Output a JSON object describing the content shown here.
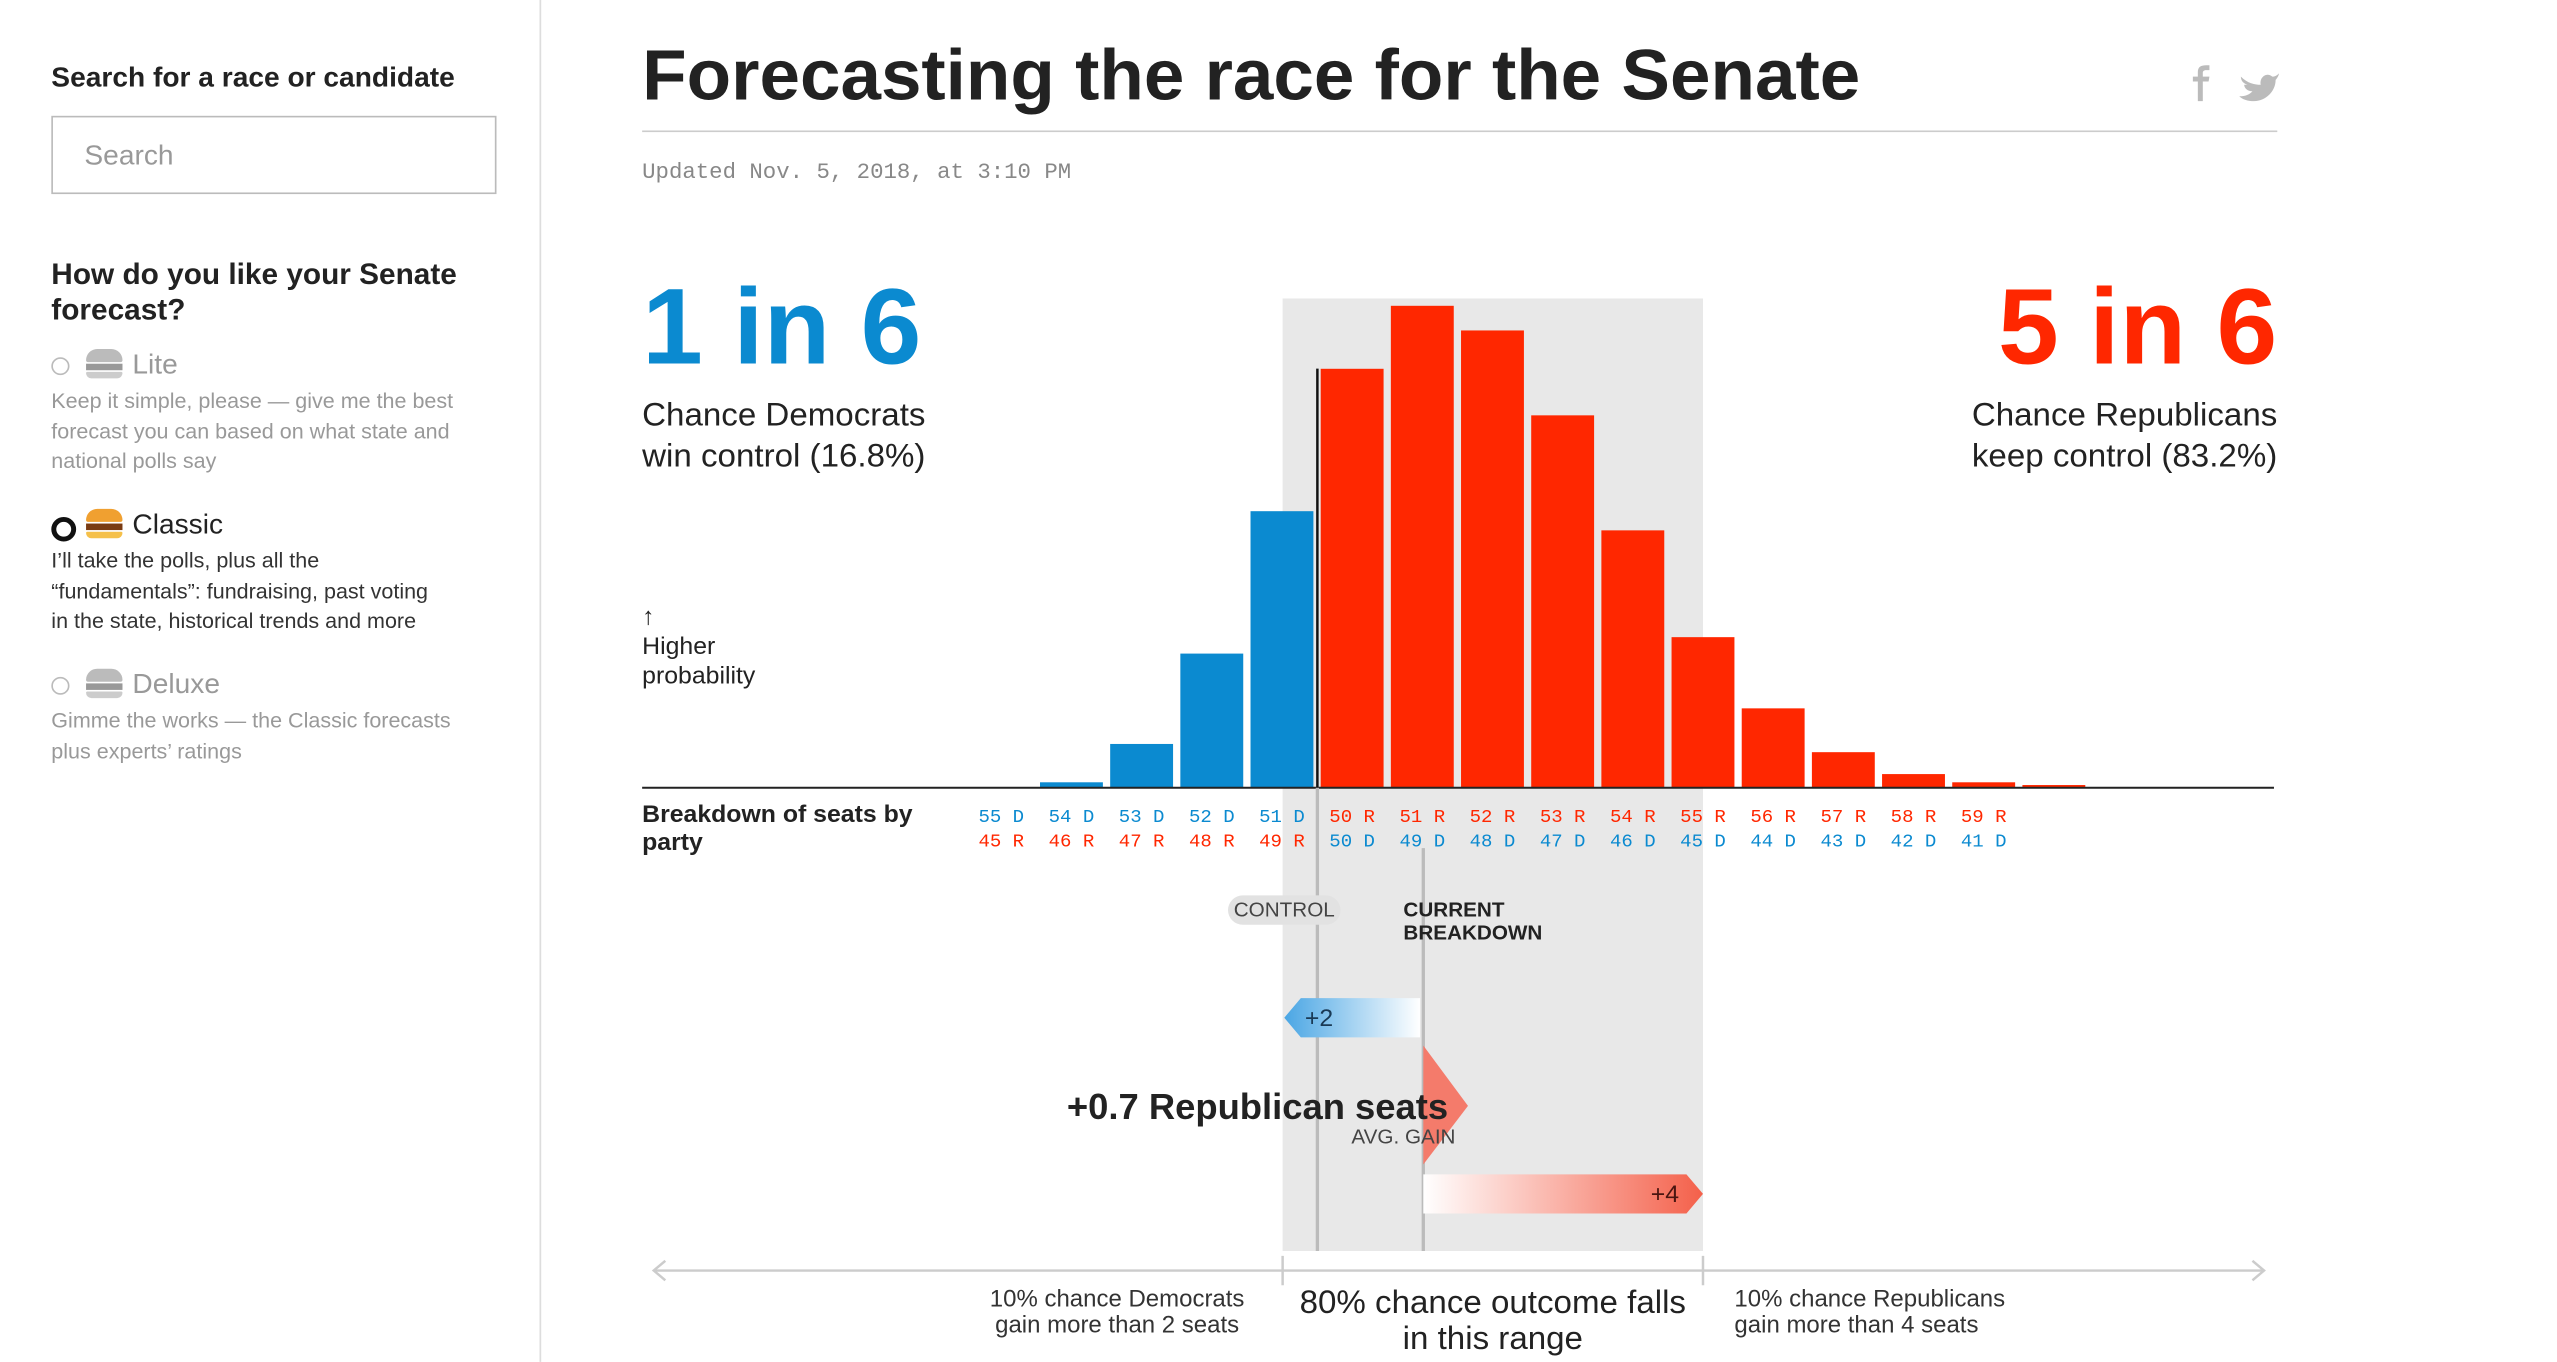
{
  "sidebar": {
    "search_heading": "Search for a race or candidate",
    "search_placeholder": "Search",
    "forecast_heading": "How do you like your Senate forecast?",
    "options": [
      {
        "name": "Lite",
        "description": [
          "Keep it simple, please — give me the best",
          "forecast you can based on what state and",
          "national polls say"
        ],
        "selected": false
      },
      {
        "name": "Classic",
        "description": [
          "I’ll take the polls, plus all the",
          "“fundamentals”: fundraising, past voting",
          "in the state, historical trends and more"
        ],
        "selected": true
      },
      {
        "name": "Deluxe",
        "description": [
          "Gimme the works — the Classic forecasts",
          "plus experts’ ratings"
        ],
        "selected": false
      }
    ]
  },
  "header": {
    "title": "Forecasting the race for the Senate",
    "updated": "Updated Nov. 5, 2018, at 3:10 PM"
  },
  "chart_data": {
    "type": "bar",
    "dem_odds": "1 in 6",
    "dem_text": [
      "Chance Democrats",
      "win control (16.8%)"
    ],
    "rep_odds": "5 in 6",
    "rep_text": [
      "Chance Republicans",
      "keep control (83.2%)"
    ],
    "y_label": [
      "↑",
      "Higher",
      "probability"
    ],
    "x_label": [
      "Breakdown of seats by",
      "party"
    ],
    "categories": [
      "55 D",
      "54 D",
      "53 D",
      "52 D",
      "51 D",
      "50 R",
      "51 R",
      "52 R",
      "53 R",
      "54 R",
      "55 R",
      "56 R",
      "57 R",
      "58 R",
      "59 R",
      null
    ],
    "categories_bottom": [
      "45 R",
      "46 R",
      "47 R",
      "48 R",
      "49 R",
      "50 D",
      "49 D",
      "48 D",
      "47 D",
      "46 D",
      "45 D",
      "44 D",
      "43 D",
      "42 D",
      "41 D",
      null
    ],
    "values": [
      0,
      0.2,
      1.6,
      4.9,
      10.1,
      15.3,
      17.6,
      16.7,
      13.6,
      9.4,
      5.5,
      2.9,
      1.3,
      0.5,
      0.2,
      0.1
    ],
    "colors": [
      "#0b8ad0",
      "#0b8ad0",
      "#0b8ad0",
      "#0b8ad0",
      "#0b8ad0",
      "#ff2700",
      "#ff2700",
      "#ff2700",
      "#ff2700",
      "#ff2700",
      "#ff2700",
      "#ff2700",
      "#ff2700",
      "#ff2700",
      "#ff2700",
      "#ff2700"
    ],
    "control_label": "CONTROL",
    "current_label": [
      "CURRENT",
      "BREAKDOWN"
    ],
    "dem_range_label": "+2",
    "rep_range_label": "+4",
    "avg_gain": "+0.7 Republican seats",
    "avg_gain_label": "AVG. GAIN",
    "left_note": [
      "10% chance Democrats",
      "gain more than 2 seats"
    ],
    "center_note": [
      "80% chance outcome falls",
      "in this range"
    ],
    "right_note": [
      "10% chance Republicans",
      "gain more than 4 seats"
    ]
  }
}
